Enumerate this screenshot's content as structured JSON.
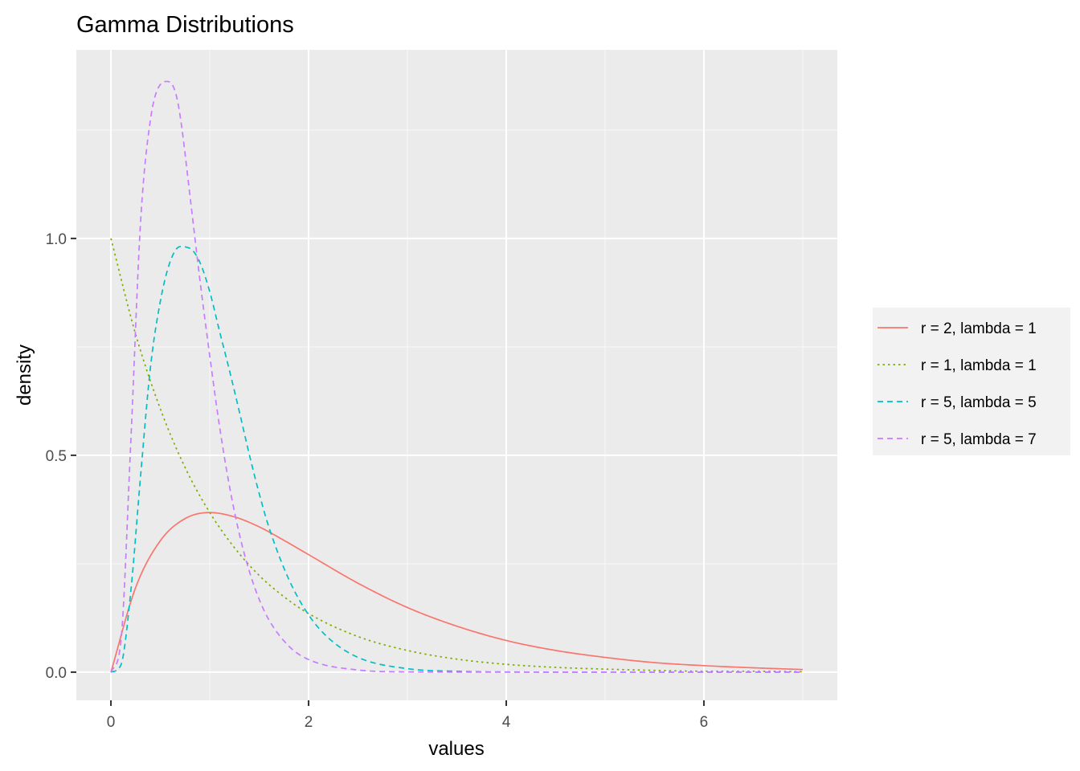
{
  "chart_data": {
    "type": "line",
    "title": "Gamma Distributions",
    "xlabel": "values",
    "ylabel": "density",
    "xlim": [
      -0.35,
      7.35
    ],
    "ylim": [
      -0.065,
      1.435
    ],
    "x_ticks": [
      0,
      2,
      4,
      6
    ],
    "x_tick_labels": [
      "0",
      "2",
      "4",
      "6"
    ],
    "y_ticks": [
      0.0,
      0.5,
      1.0
    ],
    "y_tick_labels": [
      "0.0",
      "0.5",
      "1.0"
    ],
    "grid": true,
    "legend_position": "right",
    "series": [
      {
        "name": "r = 2, lambda = 1",
        "color": "#F8766D",
        "linetype": "solid",
        "x": [
          0,
          0.25,
          0.5,
          0.75,
          1,
          1.25,
          1.5,
          1.75,
          2,
          2.5,
          3,
          3.5,
          4,
          4.5,
          5,
          5.5,
          6,
          6.5,
          7
        ],
        "values": [
          0,
          0.195,
          0.303,
          0.354,
          0.368,
          0.358,
          0.335,
          0.304,
          0.271,
          0.205,
          0.149,
          0.106,
          0.073,
          0.05,
          0.034,
          0.022,
          0.015,
          0.01,
          0.006
        ]
      },
      {
        "name": "r = 1, lambda = 1",
        "color": "#7CAE00",
        "linetype": "dotted",
        "x": [
          0,
          0.25,
          0.5,
          0.75,
          1,
          1.25,
          1.5,
          1.75,
          2,
          2.5,
          3,
          3.5,
          4,
          4.5,
          5,
          5.5,
          6,
          6.5,
          7
        ],
        "values": [
          1.0,
          0.779,
          0.607,
          0.472,
          0.368,
          0.287,
          0.223,
          0.174,
          0.135,
          0.082,
          0.05,
          0.03,
          0.018,
          0.011,
          0.007,
          0.004,
          0.002,
          0.002,
          0.001
        ]
      },
      {
        "name": "r = 5, lambda = 5",
        "color": "#00BFC4",
        "linetype": "dashed",
        "x": [
          0,
          0.1,
          0.2,
          0.3,
          0.4,
          0.5,
          0.6,
          0.7,
          0.8,
          0.9,
          1.0,
          1.1,
          1.2,
          1.3,
          1.4,
          1.5,
          1.6,
          1.8,
          2.0,
          2.2,
          2.5,
          3.0,
          3.5,
          4.0,
          5.0,
          6.0,
          7.0
        ],
        "values": [
          0,
          0.016,
          0.184,
          0.452,
          0.703,
          0.855,
          0.947,
          0.981,
          0.977,
          0.945,
          0.877,
          0.785,
          0.695,
          0.6,
          0.502,
          0.412,
          0.333,
          0.214,
          0.132,
          0.079,
          0.034,
          0.008,
          0.002,
          0.0004,
          0,
          0,
          0
        ]
      },
      {
        "name": "r = 5, lambda = 7",
        "color": "#C77CFF",
        "linetype": "dashed",
        "x": [
          0,
          0.1,
          0.2,
          0.3,
          0.4,
          0.5,
          0.571,
          0.65,
          0.7,
          0.8,
          0.9,
          1.0,
          1.1,
          1.2,
          1.3,
          1.4,
          1.5,
          1.6,
          1.8,
          2.0,
          2.5,
          3.0,
          4.0,
          5.0,
          6.0,
          7.0
        ],
        "values": [
          0,
          0.069,
          0.526,
          1.038,
          1.274,
          1.355,
          1.362,
          1.339,
          1.283,
          1.098,
          0.905,
          0.729,
          0.565,
          0.428,
          0.318,
          0.233,
          0.168,
          0.12,
          0.06,
          0.029,
          0.005,
          0.0006,
          0,
          0,
          0,
          0
        ]
      }
    ]
  }
}
